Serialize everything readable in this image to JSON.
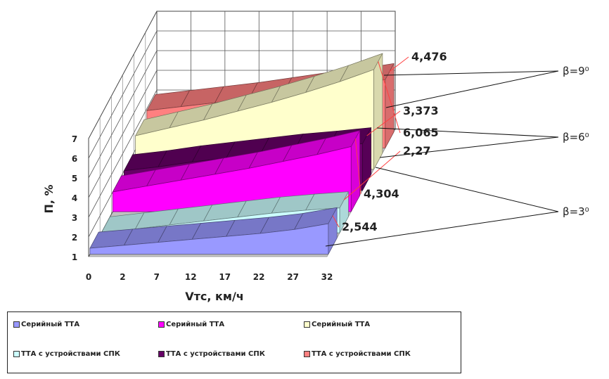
{
  "chart_data": {
    "type": "area",
    "chart_style": "3d-area",
    "ylabel": "П, %",
    "xlabel": "Vтс, км/ч",
    "ylim": [
      1,
      7
    ],
    "y_ticks": [
      "1",
      "2",
      "3",
      "4",
      "5",
      "6",
      "7"
    ],
    "x_ticks": [
      "0",
      "2",
      "7",
      "12",
      "17",
      "22",
      "27",
      "32"
    ],
    "grid": true,
    "series": [
      {
        "name": "Серийный ТТА",
        "color": "#9999FF",
        "values": [
          1.3,
          1.45,
          1.6,
          1.75,
          1.9,
          2.05,
          2.25,
          2.544
        ]
      },
      {
        "name": "ТТА с устройствами СПК",
        "color": "#CCFFFF",
        "values": [
          1.0,
          1.2,
          1.4,
          1.6,
          1.8,
          2.0,
          2.15,
          2.27
        ]
      },
      {
        "name": "Серийный ТТА",
        "color": "#FF00FF",
        "values": [
          2.0,
          2.3,
          2.6,
          2.9,
          3.2,
          3.55,
          3.9,
          4.304
        ]
      },
      {
        "name": "ТТА с устройствами СПК",
        "color": "#660066",
        "values": [
          2.0,
          2.2,
          2.45,
          2.65,
          2.85,
          3.05,
          3.2,
          3.373
        ]
      },
      {
        "name": "Серийный ТТА",
        "color": "#FFFFCC",
        "values": [
          2.7,
          3.1,
          3.5,
          3.95,
          4.4,
          4.9,
          5.45,
          6.065
        ]
      },
      {
        "name": "ТТА с устройствами СПК",
        "color": "#FF8080",
        "values": [
          2.9,
          3.1,
          3.3,
          3.5,
          3.75,
          4.0,
          4.2,
          4.476
        ]
      }
    ],
    "data_labels": [
      "4,476",
      "3,373",
      "6,065",
      "2,27",
      "4,304",
      "2,544"
    ],
    "annotations": [
      "β=9⁰",
      "β=6⁰",
      "β=3⁰"
    ],
    "legend_position": "bottom"
  }
}
